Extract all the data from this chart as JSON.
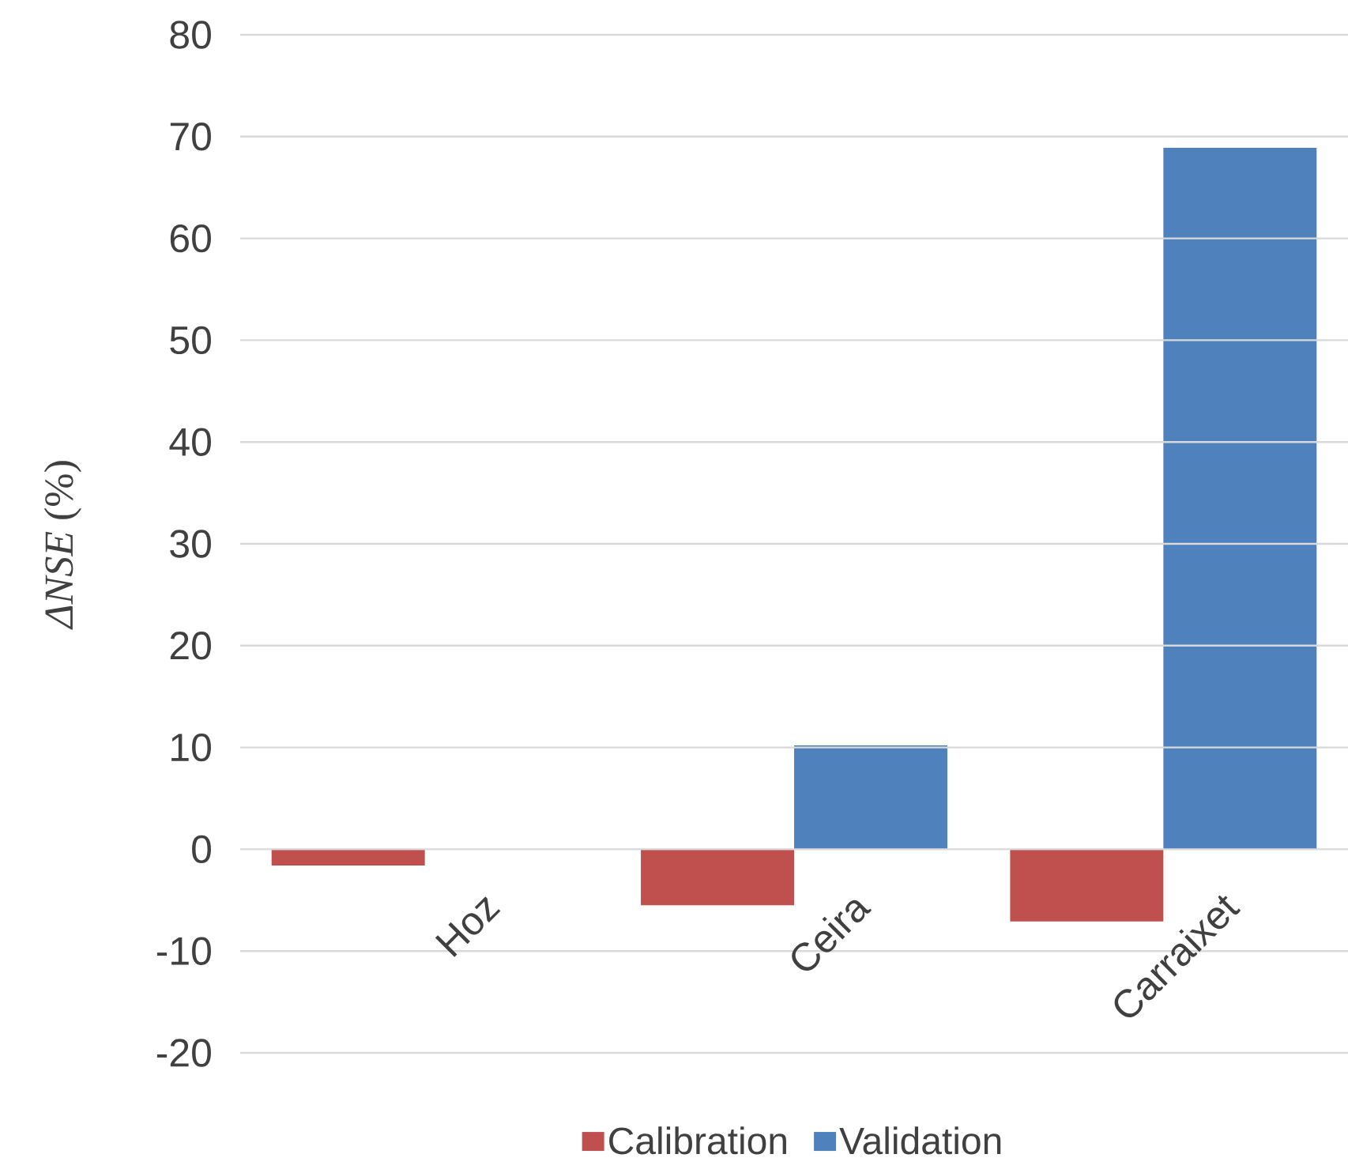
{
  "chart_data": {
    "type": "bar",
    "ylabel": "*ΔNSE* (%)",
    "categories": [
      "Hoz",
      "Ceira",
      "Carraixet"
    ],
    "series": [
      {
        "name": "Calibration",
        "color": "#c0504d",
        "values": [
          -1.6,
          -5.5,
          -7.1
        ]
      },
      {
        "name": "Validation",
        "color": "#4f81bd",
        "values": [
          0,
          10.2,
          68.9
        ]
      }
    ],
    "ylim": [
      -20,
      80
    ],
    "yticks": [
      -20,
      -10,
      0,
      10,
      20,
      30,
      40,
      50,
      60,
      70,
      80
    ],
    "grid": "y",
    "legend": "bottom"
  }
}
